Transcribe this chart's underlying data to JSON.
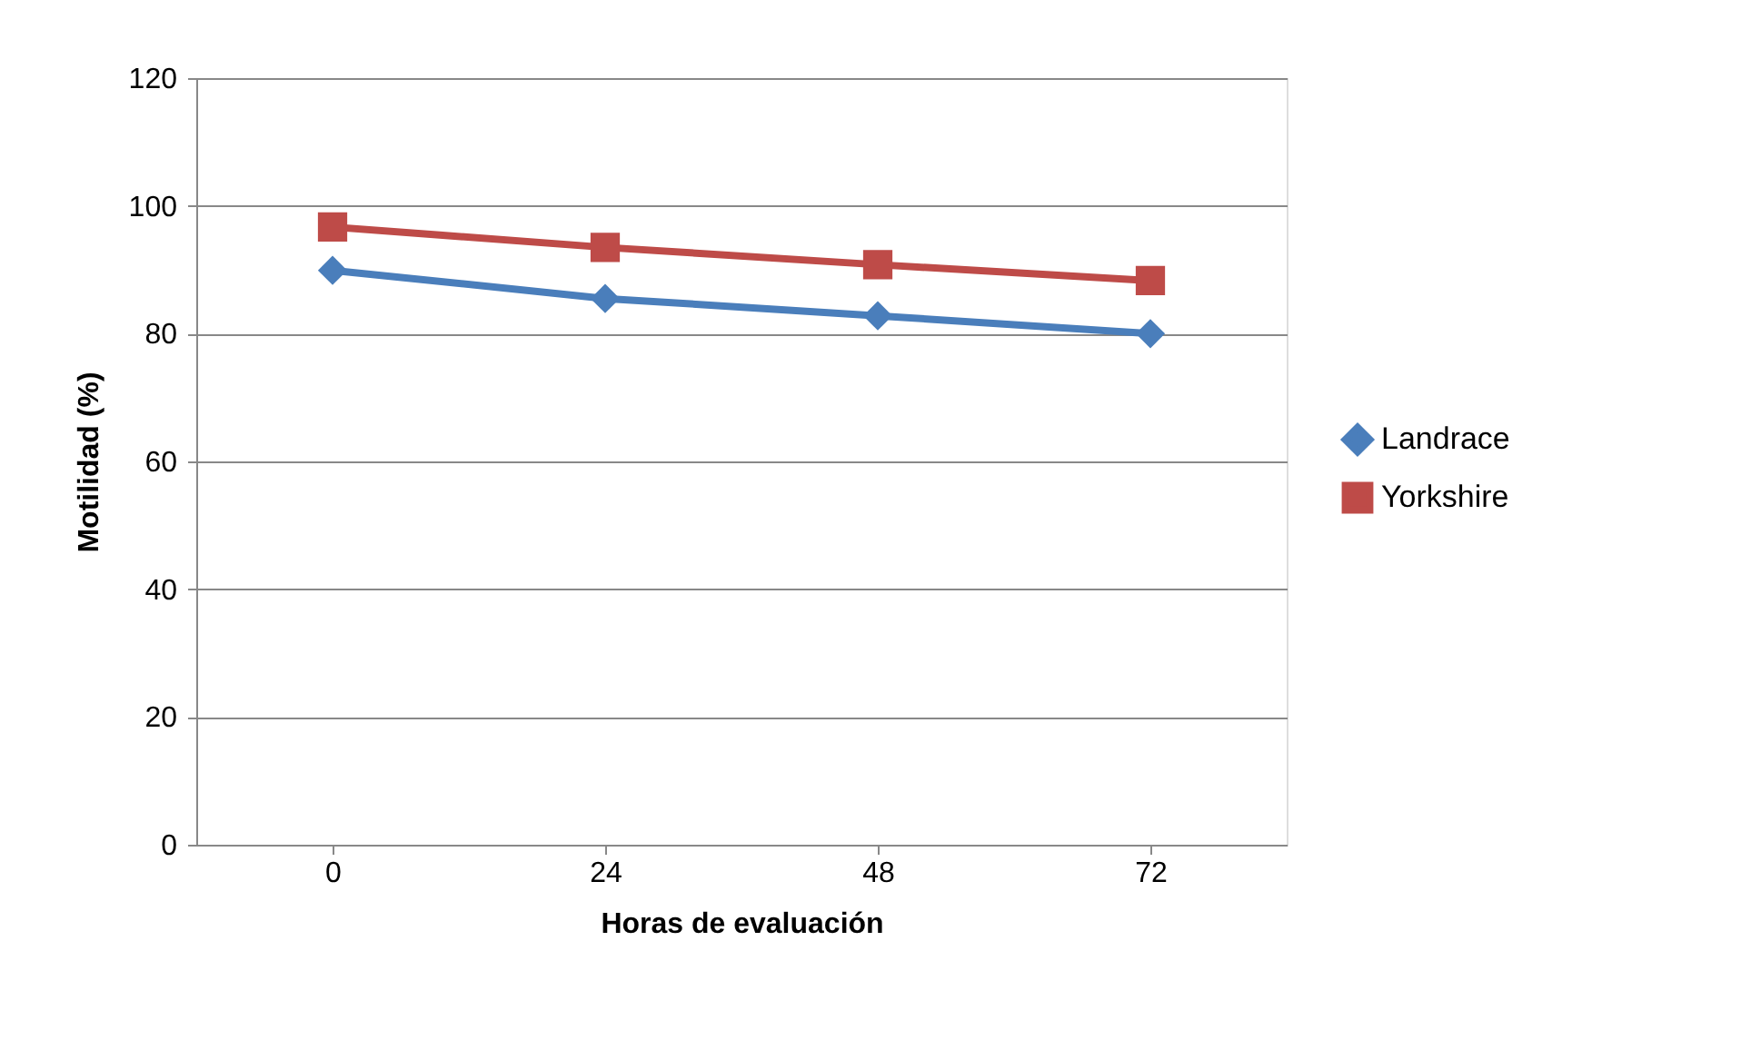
{
  "chart_data": {
    "type": "line",
    "xlabel": "Horas de evaluación",
    "ylabel": "Motilidad (%)",
    "categories": [
      "0",
      "24",
      "48",
      "72"
    ],
    "series": [
      {
        "name": "Landrace",
        "color": "#4a7ebb",
        "marker": "diamond",
        "values": [
          89.9,
          85.5,
          82.8,
          80
        ]
      },
      {
        "name": "Yorkshire",
        "color": "#be4b48",
        "marker": "square",
        "values": [
          96.7,
          93.5,
          90.8,
          88.3
        ]
      }
    ],
    "ylim": [
      0,
      120
    ],
    "yticks": [
      0,
      20,
      40,
      60,
      80,
      100,
      120
    ],
    "grid": "y",
    "legend": "right",
    "line_style": "solid"
  }
}
